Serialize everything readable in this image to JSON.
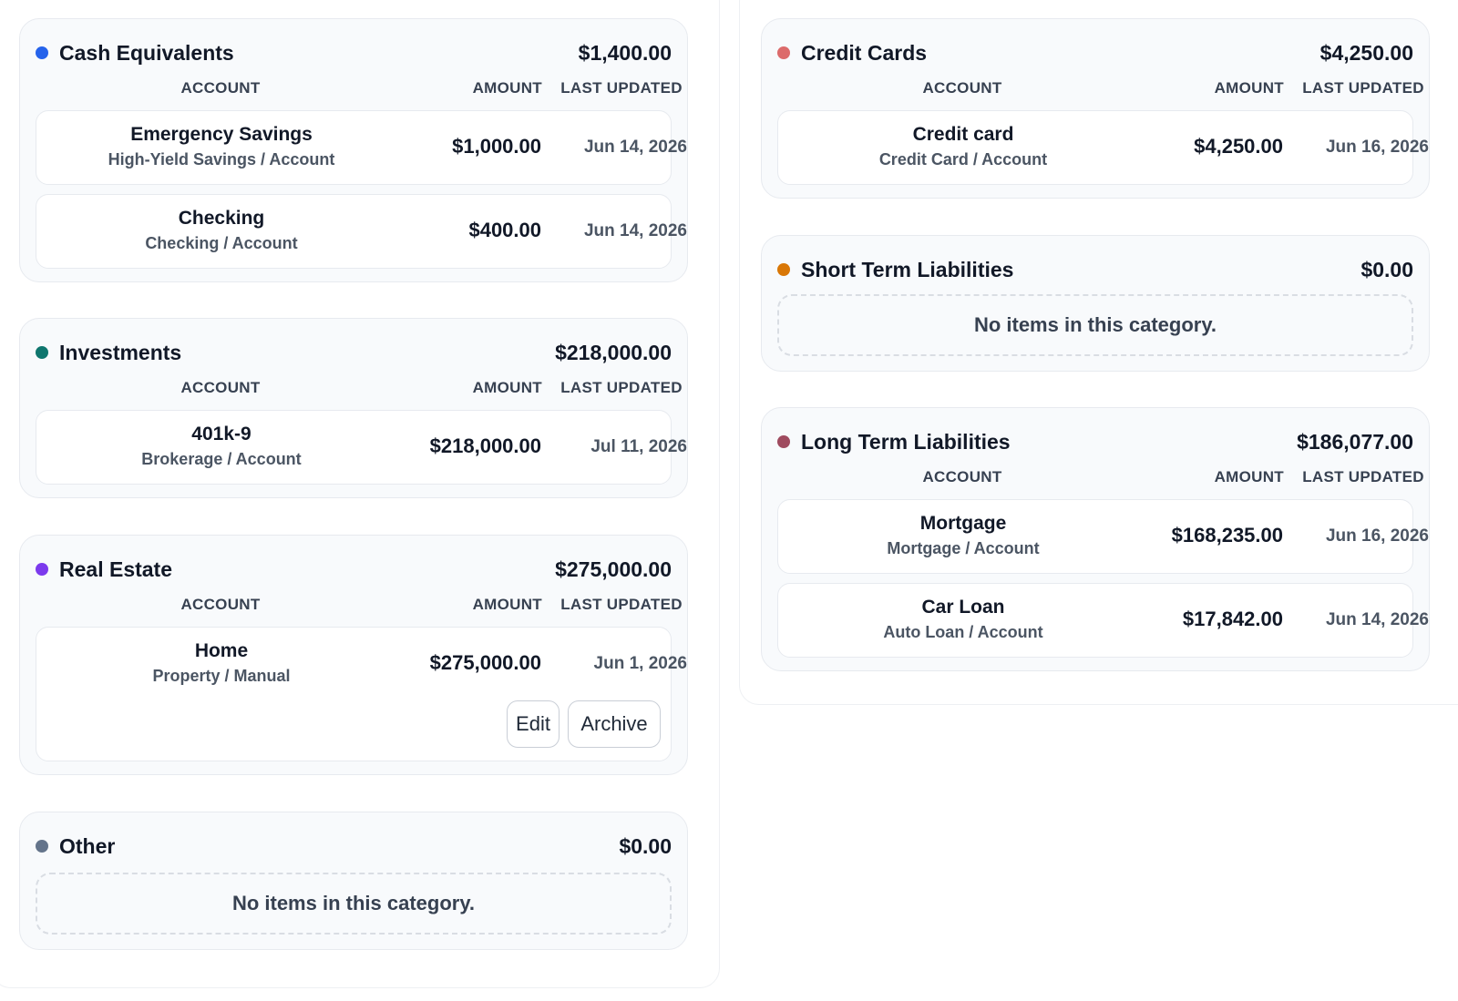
{
  "columns_header": {
    "account": "ACCOUNT",
    "amount": "AMOUNT",
    "last_updated": "LAST UPDATED"
  },
  "empty_text": "No items in this category.",
  "buttons": {
    "edit": "Edit",
    "archive": "Archive"
  },
  "colors": {
    "cash": "#2563eb",
    "investments": "#0f766e",
    "real_estate": "#7c3aed",
    "other": "#64748b",
    "credit_cards": "#dc6b6b",
    "short_term": "#d97706",
    "long_term": "#9f4b5f"
  },
  "assets": {
    "cash": {
      "title": "Cash Equivalents",
      "total": "$1,400.00",
      "rows": [
        {
          "name": "Emergency Savings",
          "sub": "High-Yield Savings / Account",
          "amount": "$1,000.00",
          "updated": "Jun 14, 2026"
        },
        {
          "name": "Checking",
          "sub": "Checking / Account",
          "amount": "$400.00",
          "updated": "Jun 14, 2026"
        }
      ]
    },
    "investments": {
      "title": "Investments",
      "total": "$218,000.00",
      "rows": [
        {
          "name": "401k-9",
          "sub": "Brokerage / Account",
          "amount": "$218,000.00",
          "updated": "Jul 11, 2026"
        }
      ]
    },
    "real_estate": {
      "title": "Real Estate",
      "total": "$275,000.00",
      "rows": [
        {
          "name": "Home",
          "sub": "Property / Manual",
          "amount": "$275,000.00",
          "updated": "Jun 1, 2026"
        }
      ]
    },
    "other": {
      "title": "Other",
      "total": "$0.00"
    }
  },
  "liabilities": {
    "credit_cards": {
      "title": "Credit Cards",
      "total": "$4,250.00",
      "rows": [
        {
          "name": "Credit card",
          "sub": "Credit Card / Account",
          "amount": "$4,250.00",
          "updated": "Jun 16, 2026"
        }
      ]
    },
    "short_term": {
      "title": "Short Term Liabilities",
      "total": "$0.00"
    },
    "long_term": {
      "title": "Long Term Liabilities",
      "total": "$186,077.00",
      "rows": [
        {
          "name": "Mortgage",
          "sub": "Mortgage / Account",
          "amount": "$168,235.00",
          "updated": "Jun 16, 2026"
        },
        {
          "name": "Car Loan",
          "sub": "Auto Loan / Account",
          "amount": "$17,842.00",
          "updated": "Jun 14, 2026"
        }
      ]
    }
  }
}
